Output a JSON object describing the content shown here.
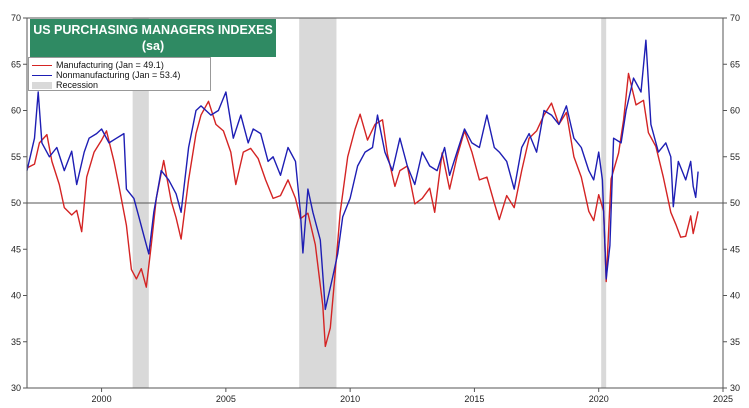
{
  "colors": {
    "manufacturing": "#d42424",
    "nonmanufacturing": "#1e1eb4",
    "recession": "#d9d9d9",
    "title_bg": "#2f8a63"
  },
  "chart_data": {
    "type": "line",
    "title": "US PURCHASING MANAGERS INDEXES",
    "subtitle": "(sa)",
    "xlim": [
      1997.0,
      2025.0
    ],
    "ylim": [
      30,
      70
    ],
    "reference_line": 50,
    "x_ticks": [
      {
        "value": 2000,
        "label": "2000"
      },
      {
        "value": 2005,
        "label": "2005"
      },
      {
        "value": 2010,
        "label": "2010"
      },
      {
        "value": 2015,
        "label": "2015"
      },
      {
        "value": 2020,
        "label": "2020"
      },
      {
        "value": 2025,
        "label": "2025"
      }
    ],
    "y_ticks": [
      30,
      35,
      40,
      45,
      50,
      55,
      60,
      65,
      70
    ],
    "recessions": [
      [
        2001.25,
        2001.9
      ],
      [
        2007.95,
        2009.45
      ],
      [
        2020.1,
        2020.3
      ]
    ],
    "legend": {
      "manufacturing": "Manufacturing (Jan = 49.1)",
      "nonmanufacturing": "Nonmanufacturing (Jan = 53.4)",
      "recession": "Recession"
    },
    "series": [
      {
        "name": "Manufacturing",
        "key": "manufacturing",
        "points": [
          [
            1997.0,
            53.8
          ],
          [
            1997.3,
            54.2
          ],
          [
            1997.5,
            56.5
          ],
          [
            1997.8,
            57.4
          ],
          [
            1998.0,
            54.5
          ],
          [
            1998.3,
            52.0
          ],
          [
            1998.5,
            49.5
          ],
          [
            1998.8,
            48.7
          ],
          [
            1999.0,
            49.2
          ],
          [
            1999.2,
            46.9
          ],
          [
            1999.4,
            52.8
          ],
          [
            1999.7,
            55.5
          ],
          [
            2000.0,
            56.8
          ],
          [
            2000.2,
            57.8
          ],
          [
            2000.5,
            54.5
          ],
          [
            2000.7,
            51.8
          ],
          [
            2001.0,
            47.6
          ],
          [
            2001.2,
            42.8
          ],
          [
            2001.4,
            41.8
          ],
          [
            2001.6,
            42.9
          ],
          [
            2001.8,
            40.9
          ],
          [
            2002.0,
            45.5
          ],
          [
            2002.2,
            50.5
          ],
          [
            2002.5,
            54.6
          ],
          [
            2002.8,
            50.2
          ],
          [
            2003.0,
            48.4
          ],
          [
            2003.2,
            46.1
          ],
          [
            2003.5,
            52.5
          ],
          [
            2003.8,
            57.5
          ],
          [
            2004.0,
            59.5
          ],
          [
            2004.3,
            61.0
          ],
          [
            2004.6,
            58.5
          ],
          [
            2004.9,
            57.8
          ],
          [
            2005.2,
            55.5
          ],
          [
            2005.4,
            52.0
          ],
          [
            2005.7,
            55.5
          ],
          [
            2006.0,
            55.9
          ],
          [
            2006.3,
            54.8
          ],
          [
            2006.6,
            52.5
          ],
          [
            2006.9,
            50.5
          ],
          [
            2007.2,
            50.8
          ],
          [
            2007.5,
            52.5
          ],
          [
            2007.8,
            50.5
          ],
          [
            2008.0,
            48.3
          ],
          [
            2008.3,
            48.9
          ],
          [
            2008.6,
            45.5
          ],
          [
            2008.9,
            38.9
          ],
          [
            2009.0,
            34.5
          ],
          [
            2009.2,
            36.5
          ],
          [
            2009.4,
            42.5
          ],
          [
            2009.6,
            49.0
          ],
          [
            2009.9,
            55.0
          ],
          [
            2010.2,
            58.0
          ],
          [
            2010.4,
            59.6
          ],
          [
            2010.7,
            56.8
          ],
          [
            2011.0,
            58.5
          ],
          [
            2011.3,
            59.0
          ],
          [
            2011.5,
            55.3
          ],
          [
            2011.8,
            51.8
          ],
          [
            2012.0,
            53.5
          ],
          [
            2012.3,
            54.0
          ],
          [
            2012.6,
            49.9
          ],
          [
            2012.9,
            50.5
          ],
          [
            2013.2,
            51.6
          ],
          [
            2013.4,
            49.0
          ],
          [
            2013.7,
            55.4
          ],
          [
            2014.0,
            51.5
          ],
          [
            2014.3,
            55.0
          ],
          [
            2014.6,
            57.8
          ],
          [
            2014.9,
            55.5
          ],
          [
            2015.2,
            52.5
          ],
          [
            2015.5,
            52.8
          ],
          [
            2015.8,
            50.0
          ],
          [
            2016.0,
            48.2
          ],
          [
            2016.3,
            50.8
          ],
          [
            2016.6,
            49.5
          ],
          [
            2016.9,
            53.5
          ],
          [
            2017.2,
            57.0
          ],
          [
            2017.5,
            57.8
          ],
          [
            2017.8,
            59.5
          ],
          [
            2018.1,
            60.8
          ],
          [
            2018.4,
            58.5
          ],
          [
            2018.7,
            59.8
          ],
          [
            2019.0,
            55.0
          ],
          [
            2019.3,
            52.8
          ],
          [
            2019.6,
            49.1
          ],
          [
            2019.8,
            48.1
          ],
          [
            2020.0,
            50.9
          ],
          [
            2020.2,
            49.1
          ],
          [
            2020.3,
            41.5
          ],
          [
            2020.5,
            52.6
          ],
          [
            2020.8,
            55.4
          ],
          [
            2021.0,
            59.0
          ],
          [
            2021.2,
            64.0
          ],
          [
            2021.5,
            60.6
          ],
          [
            2021.8,
            61.1
          ],
          [
            2022.0,
            57.6
          ],
          [
            2022.3,
            56.1
          ],
          [
            2022.6,
            52.8
          ],
          [
            2022.9,
            49.0
          ],
          [
            2023.1,
            47.7
          ],
          [
            2023.3,
            46.3
          ],
          [
            2023.5,
            46.4
          ],
          [
            2023.7,
            48.6
          ],
          [
            2023.8,
            46.7
          ],
          [
            2024.0,
            49.1
          ]
        ]
      },
      {
        "name": "Nonmanufacturing",
        "key": "nonmanufacturing",
        "points": [
          [
            1997.0,
            53.5
          ],
          [
            1997.3,
            57.0
          ],
          [
            1997.45,
            62.0
          ],
          [
            1997.6,
            56.5
          ],
          [
            1997.9,
            55.0
          ],
          [
            1998.2,
            56.0
          ],
          [
            1998.5,
            53.5
          ],
          [
            1998.8,
            55.6
          ],
          [
            1999.0,
            52.0
          ],
          [
            1999.3,
            55.5
          ],
          [
            1999.5,
            57.0
          ],
          [
            1999.8,
            57.5
          ],
          [
            2000.0,
            58.0
          ],
          [
            2000.3,
            56.5
          ],
          [
            2000.6,
            57.0
          ],
          [
            2000.9,
            57.5
          ],
          [
            2001.0,
            51.5
          ],
          [
            2001.3,
            50.5
          ],
          [
            2001.5,
            48.5
          ],
          [
            2001.7,
            46.5
          ],
          [
            2001.9,
            44.5
          ],
          [
            2002.1,
            49.0
          ],
          [
            2002.4,
            53.5
          ],
          [
            2002.7,
            52.5
          ],
          [
            2003.0,
            51.0
          ],
          [
            2003.2,
            49.0
          ],
          [
            2003.5,
            56.0
          ],
          [
            2003.8,
            60.0
          ],
          [
            2004.0,
            60.5
          ],
          [
            2004.4,
            59.5
          ],
          [
            2004.7,
            60.0
          ],
          [
            2005.0,
            62.0
          ],
          [
            2005.3,
            57.0
          ],
          [
            2005.6,
            59.5
          ],
          [
            2005.9,
            56.5
          ],
          [
            2006.1,
            58.0
          ],
          [
            2006.4,
            57.5
          ],
          [
            2006.7,
            54.5
          ],
          [
            2006.9,
            55.0
          ],
          [
            2007.2,
            53.0
          ],
          [
            2007.5,
            56.0
          ],
          [
            2007.8,
            54.5
          ],
          [
            2008.0,
            49.0
          ],
          [
            2008.1,
            44.6
          ],
          [
            2008.3,
            51.5
          ],
          [
            2008.5,
            49.0
          ],
          [
            2008.8,
            46.0
          ],
          [
            2009.0,
            38.5
          ],
          [
            2009.3,
            42.0
          ],
          [
            2009.5,
            44.5
          ],
          [
            2009.7,
            48.5
          ],
          [
            2010.0,
            50.5
          ],
          [
            2010.3,
            54.0
          ],
          [
            2010.6,
            55.5
          ],
          [
            2010.9,
            56.0
          ],
          [
            2011.1,
            59.5
          ],
          [
            2011.4,
            55.5
          ],
          [
            2011.7,
            53.5
          ],
          [
            2012.0,
            57.0
          ],
          [
            2012.3,
            54.0
          ],
          [
            2012.6,
            52.0
          ],
          [
            2012.9,
            55.5
          ],
          [
            2013.2,
            54.0
          ],
          [
            2013.5,
            53.5
          ],
          [
            2013.8,
            56.0
          ],
          [
            2014.0,
            53.0
          ],
          [
            2014.3,
            55.5
          ],
          [
            2014.6,
            58.0
          ],
          [
            2014.9,
            56.5
          ],
          [
            2015.2,
            56.0
          ],
          [
            2015.5,
            59.5
          ],
          [
            2015.8,
            56.0
          ],
          [
            2016.0,
            55.5
          ],
          [
            2016.3,
            54.5
          ],
          [
            2016.6,
            51.5
          ],
          [
            2016.9,
            56.0
          ],
          [
            2017.2,
            57.5
          ],
          [
            2017.5,
            55.5
          ],
          [
            2017.8,
            60.0
          ],
          [
            2018.1,
            59.5
          ],
          [
            2018.4,
            58.5
          ],
          [
            2018.7,
            60.5
          ],
          [
            2019.0,
            57.0
          ],
          [
            2019.3,
            56.0
          ],
          [
            2019.6,
            53.5
          ],
          [
            2019.8,
            52.5
          ],
          [
            2020.0,
            55.5
          ],
          [
            2020.15,
            52.5
          ],
          [
            2020.3,
            41.8
          ],
          [
            2020.45,
            45.4
          ],
          [
            2020.6,
            57.0
          ],
          [
            2020.9,
            56.5
          ],
          [
            2021.1,
            60.0
          ],
          [
            2021.4,
            63.5
          ],
          [
            2021.7,
            62.0
          ],
          [
            2021.9,
            67.6
          ],
          [
            2022.1,
            58.5
          ],
          [
            2022.4,
            55.5
          ],
          [
            2022.7,
            56.5
          ],
          [
            2022.9,
            55.0
          ],
          [
            2023.0,
            49.6
          ],
          [
            2023.2,
            54.5
          ],
          [
            2023.5,
            52.5
          ],
          [
            2023.7,
            54.5
          ],
          [
            2023.8,
            51.8
          ],
          [
            2023.9,
            50.6
          ],
          [
            2024.0,
            53.4
          ]
        ]
      }
    ]
  }
}
